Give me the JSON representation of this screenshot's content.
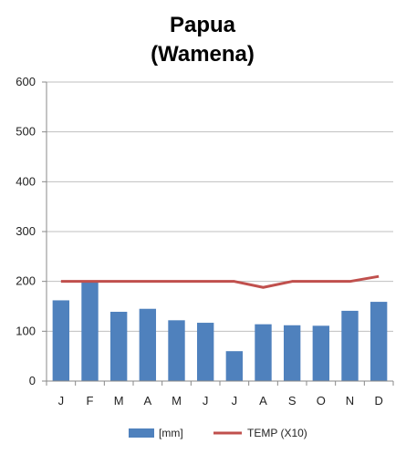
{
  "chart_data": {
    "type": "bar",
    "title_lines": [
      "Papua",
      "(Wamena)"
    ],
    "xlabel": "",
    "ylabel": "",
    "categories": [
      "J",
      "F",
      "M",
      "A",
      "M",
      "J",
      "J",
      "A",
      "S",
      "O",
      "N",
      "D"
    ],
    "series": [
      {
        "name": "[mm]",
        "kind": "bar",
        "color": "#4f81bd",
        "values": [
          162,
          200,
          139,
          145,
          122,
          117,
          60,
          114,
          112,
          111,
          141,
          159
        ]
      },
      {
        "name": "TEMP (X10)",
        "kind": "line",
        "color": "#c0504d",
        "values": [
          200,
          200,
          200,
          200,
          200,
          200,
          200,
          188,
          200,
          200,
          200,
          210
        ]
      }
    ],
    "ylim": [
      0,
      600
    ],
    "yticks": [
      0,
      100,
      200,
      300,
      400,
      500,
      600
    ],
    "grid": true,
    "legend_position": "bottom"
  }
}
